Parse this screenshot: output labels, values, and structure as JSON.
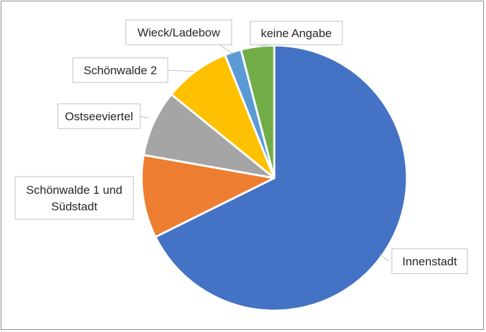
{
  "chart_data": {
    "type": "pie",
    "title": "",
    "start_angle_deg": 0,
    "direction": "clockwise",
    "slices": [
      {
        "name": "Innenstadt",
        "label": "Innenstadt",
        "value": 67,
        "color": "#4472C4"
      },
      {
        "name": "Schönwalde 1 und Südstadt",
        "label": "Schönwalde 1 und Südstadt",
        "label_lines": [
          "Schönwalde 1 und",
          "Südstadt"
        ],
        "value": 10,
        "color": "#ED7D31"
      },
      {
        "name": "Ostseeviertel",
        "label": "Ostseeviertel",
        "value": 8,
        "color": "#A5A5A5"
      },
      {
        "name": "Schönwalde 2",
        "label": "Schönwalde 2",
        "value": 8,
        "color": "#FFC000"
      },
      {
        "name": "Wieck/Ladebow",
        "label": "Wieck/Ladebow",
        "value": 2,
        "color": "#5B9BD5"
      },
      {
        "name": "keine Angabe",
        "label": "keine Angabe",
        "value": 4,
        "color": "#70AD47"
      }
    ],
    "legend": "none",
    "data_labels": "category-name-with-callouts"
  }
}
